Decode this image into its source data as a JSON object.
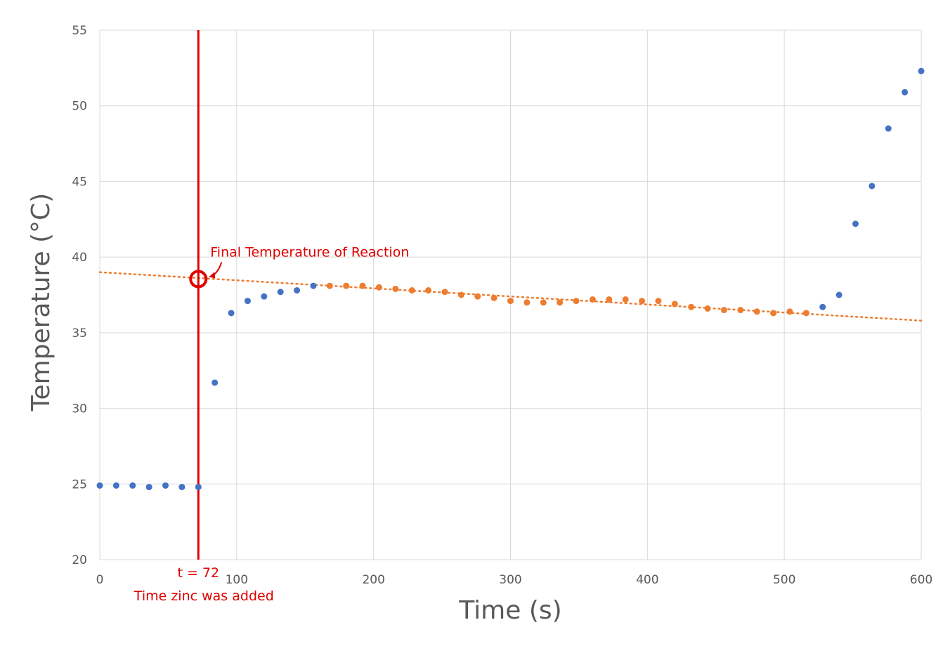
{
  "chart_data": {
    "type": "scatter",
    "title": "",
    "xlabel": "Time (s)",
    "ylabel": "Temperature (°C)",
    "xlim": [
      0,
      600
    ],
    "ylim": [
      20,
      55
    ],
    "x_ticks": [
      0,
      100,
      200,
      300,
      400,
      500,
      600
    ],
    "y_ticks": [
      20,
      25,
      30,
      35,
      40,
      45,
      50,
      55
    ],
    "grid": true,
    "legend": "none",
    "series": [
      {
        "color": "#4472C4",
        "marker": "circle",
        "points": [
          {
            "x": 0,
            "y": 24.9
          },
          {
            "x": 12,
            "y": 24.9
          },
          {
            "x": 24,
            "y": 24.9
          },
          {
            "x": 36,
            "y": 24.8
          },
          {
            "x": 48,
            "y": 24.9
          },
          {
            "x": 60,
            "y": 24.8
          },
          {
            "x": 72,
            "y": 24.8
          },
          {
            "x": 84,
            "y": 31.7
          },
          {
            "x": 96,
            "y": 36.3
          },
          {
            "x": 108,
            "y": 37.1
          },
          {
            "x": 120,
            "y": 37.4
          },
          {
            "x": 132,
            "y": 37.7
          },
          {
            "x": 144,
            "y": 37.8
          },
          {
            "x": 156,
            "y": 38.1
          },
          {
            "x": 528,
            "y": 36.7
          },
          {
            "x": 540,
            "y": 37.5
          },
          {
            "x": 552,
            "y": 42.2
          },
          {
            "x": 564,
            "y": 44.7
          },
          {
            "x": 576,
            "y": 48.5
          },
          {
            "x": 588,
            "y": 50.9
          },
          {
            "x": 600,
            "y": 52.3
          }
        ]
      },
      {
        "color": "#ED7D31",
        "marker": "circle",
        "points": [
          {
            "x": 168,
            "y": 38.1
          },
          {
            "x": 180,
            "y": 38.1
          },
          {
            "x": 192,
            "y": 38.1
          },
          {
            "x": 204,
            "y": 38.0
          },
          {
            "x": 216,
            "y": 37.9
          },
          {
            "x": 228,
            "y": 37.8
          },
          {
            "x": 240,
            "y": 37.8
          },
          {
            "x": 252,
            "y": 37.7
          },
          {
            "x": 264,
            "y": 37.5
          },
          {
            "x": 276,
            "y": 37.4
          },
          {
            "x": 288,
            "y": 37.3
          },
          {
            "x": 300,
            "y": 37.1
          },
          {
            "x": 312,
            "y": 37.0
          },
          {
            "x": 324,
            "y": 37.0
          },
          {
            "x": 336,
            "y": 37.0
          },
          {
            "x": 348,
            "y": 37.1
          },
          {
            "x": 360,
            "y": 37.2
          },
          {
            "x": 372,
            "y": 37.2
          },
          {
            "x": 384,
            "y": 37.2
          },
          {
            "x": 396,
            "y": 37.1
          },
          {
            "x": 408,
            "y": 37.1
          },
          {
            "x": 420,
            "y": 36.9
          },
          {
            "x": 432,
            "y": 36.7
          },
          {
            "x": 444,
            "y": 36.6
          },
          {
            "x": 456,
            "y": 36.5
          },
          {
            "x": 468,
            "y": 36.5
          },
          {
            "x": 480,
            "y": 36.4
          },
          {
            "x": 492,
            "y": 36.3
          },
          {
            "x": 504,
            "y": 36.4
          },
          {
            "x": 516,
            "y": 36.3
          }
        ]
      }
    ],
    "trendline": {
      "type": "linear",
      "style": "dotted",
      "color": "#ED7D31",
      "x": [
        0,
        600
      ],
      "y": [
        39.0,
        35.8
      ]
    },
    "annotations": {
      "vertical_line": {
        "x": 72,
        "color": "#E00000",
        "label": "t = 72",
        "sublabel": "Time zinc was added"
      },
      "highlight": {
        "x": 72,
        "y": 38.55,
        "color": "#E00000",
        "label": "Final Temperature of Reaction"
      }
    }
  }
}
